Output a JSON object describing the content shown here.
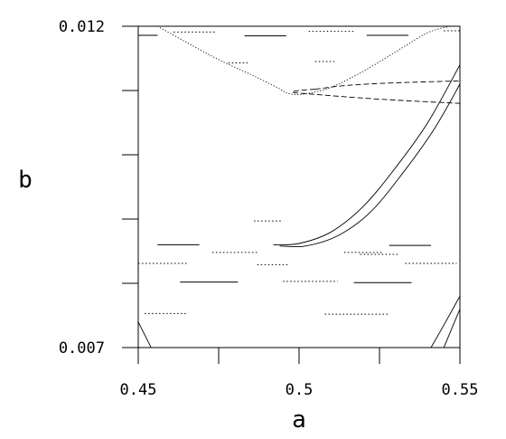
{
  "chart_data": {
    "type": "line",
    "title": "",
    "xlabel": "a",
    "ylabel": "b",
    "xlim": [
      0.45,
      0.55
    ],
    "ylim": [
      0.007,
      0.012
    ],
    "x_tick_labels": [
      "0.45",
      "0.5",
      "0.55"
    ],
    "y_tick_labels": [
      "0.007",
      "0.012"
    ],
    "x_ticks": [
      0.45,
      0.475,
      0.5,
      0.525,
      0.55
    ],
    "y_ticks": [
      0.007,
      0.008,
      0.009,
      0.01,
      0.011,
      0.012
    ],
    "grid": false,
    "legend": "none",
    "series": [
      {
        "style": "dotted",
        "x": [
          0.456,
          0.465,
          0.475,
          0.485,
          0.493,
          0.497,
          0.502,
          0.51,
          0.52,
          0.53,
          0.54,
          0.547
        ],
        "y": [
          0.012,
          0.01175,
          0.01148,
          0.01125,
          0.01105,
          0.01095,
          0.01095,
          0.01105,
          0.0113,
          0.0116,
          0.0119,
          0.012
        ]
      },
      {
        "style": "dashed",
        "x": [
          0.505,
          0.5,
          0.498,
          0.505,
          0.515,
          0.53,
          0.55
        ],
        "y": [
          0.01102,
          0.011,
          0.01097,
          0.01094,
          0.0109,
          0.01085,
          0.0108
        ]
      },
      {
        "style": "dashed",
        "x": [
          0.505,
          0.515,
          0.53,
          0.55
        ],
        "y": [
          0.01102,
          0.01108,
          0.01112,
          0.01115
        ]
      },
      {
        "style": "solid",
        "x": [
          0.492,
          0.5,
          0.51,
          0.52,
          0.53,
          0.54,
          0.55
        ],
        "y": [
          0.0086,
          0.00862,
          0.0088,
          0.0092,
          0.0098,
          0.0105,
          0.0114
        ]
      },
      {
        "style": "solid",
        "x": [
          0.494,
          0.502,
          0.512,
          0.522,
          0.532,
          0.542,
          0.55
        ],
        "y": [
          0.00858,
          0.00858,
          0.00874,
          0.0091,
          0.0097,
          0.0104,
          0.0111
        ]
      },
      {
        "style": "solid",
        "x": [
          0.541,
          0.545,
          0.55
        ],
        "y": [
          0.007,
          0.00735,
          0.0078
        ]
      },
      {
        "style": "solid",
        "x": [
          0.545,
          0.55
        ],
        "y": [
          0.007,
          0.0076
        ]
      },
      {
        "style": "solid",
        "x": [
          0.45,
          0.452,
          0.454
        ],
        "y": [
          0.0074,
          0.0072,
          0.007
        ]
      }
    ],
    "fragments": [
      {
        "x": [
          0.45,
          0.456
        ],
        "y": 0.01186,
        "style": "solid"
      },
      {
        "x": [
          0.461,
          0.474
        ],
        "y": 0.01191,
        "style": "dotted"
      },
      {
        "x": [
          0.483,
          0.496
        ],
        "y": 0.01185,
        "style": "solid"
      },
      {
        "x": [
          0.503,
          0.517
        ],
        "y": 0.01192,
        "style": "dotted"
      },
      {
        "x": [
          0.521,
          0.534
        ],
        "y": 0.01186,
        "style": "solid"
      },
      {
        "x": [
          0.545,
          0.55
        ],
        "y": 0.01193,
        "style": "dotted"
      },
      {
        "x": [
          0.478,
          0.484
        ],
        "y": 0.01143,
        "style": "dotted"
      },
      {
        "x": [
          0.505,
          0.511
        ],
        "y": 0.01145,
        "style": "dotted"
      },
      {
        "x": [
          0.456,
          0.469
        ],
        "y": 0.0086,
        "style": "solid"
      },
      {
        "x": [
          0.473,
          0.487
        ],
        "y": 0.00848,
        "style": "dotted"
      },
      {
        "x": [
          0.514,
          0.526
        ],
        "y": 0.00848,
        "style": "dotted"
      },
      {
        "x": [
          0.528,
          0.541
        ],
        "y": 0.00859,
        "style": "solid"
      },
      {
        "x": [
          0.45,
          0.465
        ],
        "y": 0.00831,
        "style": "dotted"
      },
      {
        "x": [
          0.487,
          0.497
        ],
        "y": 0.00829,
        "style": "dotted"
      },
      {
        "x": [
          0.533,
          0.549
        ],
        "y": 0.00831,
        "style": "dotted"
      },
      {
        "x": [
          0.463,
          0.481
        ],
        "y": 0.00802,
        "style": "solid"
      },
      {
        "x": [
          0.495,
          0.512
        ],
        "y": 0.00803,
        "style": "dotted"
      },
      {
        "x": [
          0.517,
          0.535
        ],
        "y": 0.00801,
        "style": "solid"
      },
      {
        "x": [
          0.452,
          0.465
        ],
        "y": 0.00753,
        "style": "dotted"
      },
      {
        "x": [
          0.508,
          0.528
        ],
        "y": 0.00752,
        "style": "dotted"
      },
      {
        "x": [
          0.486,
          0.495
        ],
        "y": 0.00897,
        "style": "dotted"
      },
      {
        "x": [
          0.519,
          0.531
        ],
        "y": 0.00845,
        "style": "dotted"
      }
    ]
  }
}
